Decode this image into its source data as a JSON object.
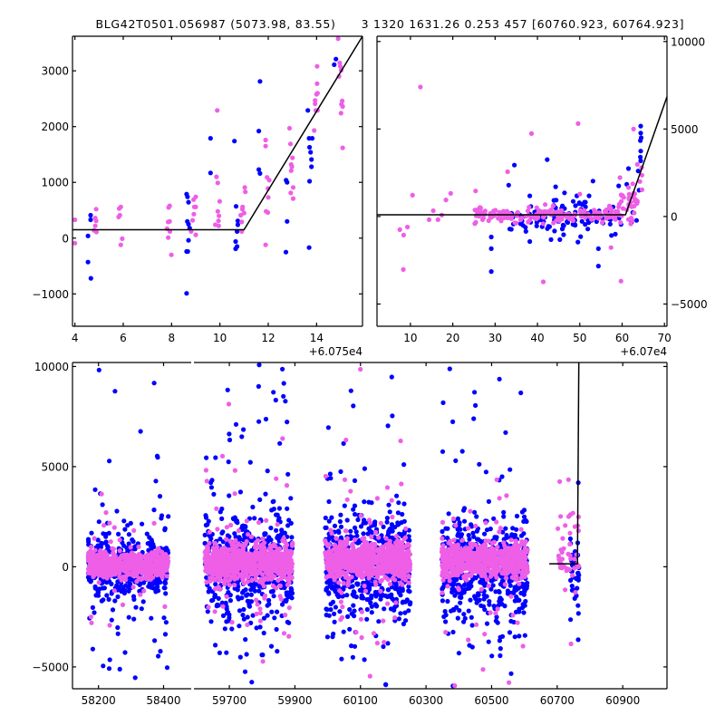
{
  "chart_data": {
    "type": "scatter",
    "title": "BLG42T0501.056987 (5073.98, 83.55)      3 1320 1631.26 0.253 457 [60760.923, 60764.923]",
    "colors": {
      "blue": "#0000ff",
      "pink": "#ee5ee6",
      "model": "#000000"
    },
    "panels": [
      {
        "id": "top-left",
        "xlim": [
          3.9,
          15.9
        ],
        "ylim": [
          -1580,
          3620
        ],
        "xticks": [
          4,
          6,
          8,
          10,
          12,
          14
        ],
        "xtick_labels": [
          "4",
          "6",
          "8",
          "10",
          "12",
          "14"
        ],
        "yticks": [
          -1000,
          0,
          1000,
          2000,
          3000
        ],
        "ytick_labels": [
          "−1000",
          "0",
          "1000",
          "2000",
          "3000"
        ],
        "x_offset_label": "+6.075e4",
        "model_line": [
          [
            3.9,
            150
          ],
          [
            11.0,
            150
          ],
          [
            15.9,
            3620
          ]
        ],
        "points": {
          "blue": [
            [
              4.65,
              410
            ],
            [
              4.65,
              330
            ],
            [
              4.54,
              40
            ],
            [
              4.54,
              -430
            ],
            [
              4.66,
              -720
            ],
            [
              8.62,
              790
            ],
            [
              8.66,
              740
            ],
            [
              8.7,
              645
            ],
            [
              8.65,
              300
            ],
            [
              8.7,
              250
            ],
            [
              8.75,
              180
            ],
            [
              8.7,
              -40
            ],
            [
              8.62,
              -240
            ],
            [
              8.67,
              -240
            ],
            [
              8.62,
              -990
            ],
            [
              9.61,
              1790
            ],
            [
              9.61,
              1170
            ],
            [
              10.6,
              1740
            ],
            [
              10.67,
              570
            ],
            [
              10.74,
              310
            ],
            [
              10.74,
              240
            ],
            [
              10.71,
              120
            ],
            [
              10.65,
              -60
            ],
            [
              10.65,
              -190
            ],
            [
              10.71,
              -150
            ],
            [
              11.66,
              2810
            ],
            [
              11.61,
              1920
            ],
            [
              11.61,
              1230
            ],
            [
              11.66,
              1160
            ],
            [
              12.74,
              1040
            ],
            [
              12.78,
              1000
            ],
            [
              12.78,
              300
            ],
            [
              12.73,
              -250
            ],
            [
              13.64,
              2290
            ],
            [
              13.69,
              1790
            ],
            [
              13.82,
              1790
            ],
            [
              13.71,
              1630
            ],
            [
              13.75,
              1540
            ],
            [
              13.79,
              1410
            ],
            [
              13.79,
              1280
            ],
            [
              13.71,
              1020
            ],
            [
              13.69,
              -170
            ],
            [
              14.8,
              3210
            ],
            [
              14.73,
              3110
            ]
          ],
          "pink": [
            [
              4.88,
              520
            ],
            [
              4.84,
              360
            ],
            [
              4.88,
              310
            ],
            [
              4.84,
              220
            ],
            [
              4.79,
              140
            ],
            [
              4.89,
              110
            ],
            [
              3.93,
              330
            ],
            [
              3.93,
              -90
            ],
            [
              5.9,
              560
            ],
            [
              5.83,
              530
            ],
            [
              5.86,
              410
            ],
            [
              5.81,
              380
            ],
            [
              5.96,
              -10
            ],
            [
              5.9,
              -120
            ],
            [
              7.92,
              580
            ],
            [
              7.88,
              550
            ],
            [
              7.92,
              300
            ],
            [
              7.86,
              290
            ],
            [
              7.81,
              170
            ],
            [
              7.93,
              120
            ],
            [
              7.86,
              10
            ],
            [
              7.99,
              -300
            ],
            [
              9.0,
              740
            ],
            [
              8.91,
              690
            ],
            [
              8.94,
              560
            ],
            [
              9.0,
              560
            ],
            [
              8.92,
              430
            ],
            [
              8.87,
              320
            ],
            [
              8.81,
              120
            ],
            [
              9.0,
              60
            ],
            [
              9.89,
              2290
            ],
            [
              9.86,
              1100
            ],
            [
              9.91,
              990
            ],
            [
              9.99,
              660
            ],
            [
              9.91,
              480
            ],
            [
              9.96,
              400
            ],
            [
              9.94,
              310
            ],
            [
              9.81,
              240
            ],
            [
              9.95,
              220
            ],
            [
              11.03,
              910
            ],
            [
              11.05,
              830
            ],
            [
              10.94,
              560
            ],
            [
              10.93,
              520
            ],
            [
              11.0,
              450
            ],
            [
              10.86,
              410
            ],
            [
              10.9,
              290
            ],
            [
              10.9,
              120
            ],
            [
              11.89,
              1760
            ],
            [
              11.89,
              1650
            ],
            [
              11.95,
              1090
            ],
            [
              12.04,
              1040
            ],
            [
              11.99,
              890
            ],
            [
              12.0,
              730
            ],
            [
              11.91,
              480
            ],
            [
              11.98,
              460
            ],
            [
              11.89,
              -120
            ],
            [
              12.88,
              1970
            ],
            [
              12.92,
              1690
            ],
            [
              13.0,
              1440
            ],
            [
              12.95,
              1320
            ],
            [
              12.98,
              1280
            ],
            [
              12.95,
              1210
            ],
            [
              13.03,
              910
            ],
            [
              12.93,
              810
            ],
            [
              13.03,
              710
            ],
            [
              14.02,
              3080
            ],
            [
              14.02,
              2770
            ],
            [
              14.04,
              2600
            ],
            [
              14.0,
              2580
            ],
            [
              13.94,
              2470
            ],
            [
              13.94,
              2410
            ],
            [
              13.97,
              2290
            ],
            [
              14.04,
              2290
            ],
            [
              13.9,
              1930
            ],
            [
              14.89,
              3600
            ],
            [
              14.96,
              3140
            ],
            [
              14.98,
              3080
            ],
            [
              15.02,
              3010
            ],
            [
              14.93,
              2900
            ],
            [
              15.06,
              2460
            ],
            [
              15.03,
              2400
            ],
            [
              15.08,
              2360
            ],
            [
              15.01,
              2240
            ],
            [
              15.08,
              1620
            ]
          ]
        }
      },
      {
        "id": "top-right",
        "xlim": [
          2.1,
          70.6
        ],
        "ylim": [
          -6270,
          10300
        ],
        "xticks": [
          10,
          20,
          30,
          40,
          50,
          60,
          70
        ],
        "xtick_labels": [
          "10",
          "20",
          "30",
          "40",
          "50",
          "60",
          "70"
        ],
        "yticks": [
          -5000,
          0,
          5000,
          10000
        ],
        "ytick_labels": [
          "−5000",
          "0",
          "5000",
          "10000"
        ],
        "y_axis_side": "right",
        "x_offset_label": "+6.07e4",
        "model_line": [
          [
            2.1,
            100
          ],
          [
            60.8,
            100
          ],
          [
            70.6,
            6840
          ]
        ],
        "points": {
          "blue": [
            [
              33.2,
              1790
            ],
            [
              29.1,
              -1170
            ],
            [
              29.1,
              -1840
            ],
            [
              29.1,
              -3140
            ],
            [
              38.2,
              1180
            ],
            [
              44.3,
              1700
            ],
            [
              46.4,
              1350
            ],
            [
              49.3,
              1180
            ],
            [
              52.2,
              1180
            ],
            [
              54.4,
              -1840
            ],
            [
              54.4,
              -2830
            ],
            [
              38.2,
              -1430
            ],
            [
              43.2,
              -1320
            ],
            [
              45.3,
              -1320
            ],
            [
              50.2,
              -1150
            ],
            [
              58.4,
              -1010
            ],
            [
              64.4,
              5170
            ],
            [
              64.4,
              4770
            ],
            [
              64.3,
              4340
            ],
            [
              64.4,
              3740
            ],
            [
              61.5,
              2740
            ],
            [
              59.2,
              1750
            ],
            [
              61.1,
              1840
            ],
            [
              64.4,
              3180
            ],
            [
              62.5,
              230
            ],
            [
              63.4,
              -220
            ],
            [
              62.2,
              -340
            ],
            [
              64.5,
              4500
            ],
            [
              64.3,
              3400
            ],
            [
              63.8,
              2600
            ],
            [
              64.0,
              1500
            ]
          ],
          "pink": [
            [
              12.35,
              7400
            ],
            [
              10.49,
              1220
            ],
            [
              19.5,
              1320
            ],
            [
              18.4,
              950
            ],
            [
              15.4,
              330
            ],
            [
              14.4,
              -180
            ],
            [
              16.5,
              -180
            ],
            [
              17.4,
              80
            ],
            [
              7.5,
              -750
            ],
            [
              8.4,
              -1060
            ],
            [
              9.3,
              -600
            ],
            [
              8.3,
              -3030
            ],
            [
              38.6,
              4740
            ],
            [
              49.6,
              5310
            ],
            [
              62.7,
              5000
            ],
            [
              63.6,
              2980
            ],
            [
              64.7,
              2360
            ],
            [
              64.7,
              1530
            ],
            [
              59.5,
              2220
            ],
            [
              61.5,
              1660
            ],
            [
              62.5,
              1870
            ],
            [
              63.2,
              970
            ],
            [
              61.5,
              -170
            ],
            [
              64.6,
              2800
            ],
            [
              64.2,
              2000
            ],
            [
              63.0,
              1300
            ],
            [
              62.0,
              800
            ]
          ]
        },
        "clusters": [
          {
            "series": "blue",
            "x_range": [
              33,
              60
            ],
            "y_center": -150,
            "y_sd": 500,
            "n": 110,
            "tail": 0.08
          },
          {
            "series": "pink",
            "x_range": [
              25,
              60
            ],
            "y_center": 100,
            "y_sd": 220,
            "n": 170,
            "tail": 0.04
          },
          {
            "series": "pink",
            "x_range": [
              59,
              64
            ],
            "y_center": 500,
            "y_sd": 400,
            "n": 30,
            "tail": 0.1
          }
        ]
      },
      {
        "id": "bottom-left",
        "xlim": [
          58120,
          58485
        ],
        "ylim": [
          -6090,
          10200
        ],
        "xticks": [
          58200,
          58400
        ],
        "xtick_labels": [
          "58200",
          "58400"
        ],
        "yticks": [
          -5000,
          0,
          5000,
          10000
        ],
        "ytick_labels": [
          "−5000",
          "0",
          "5000",
          "10000"
        ],
        "clusters": [
          {
            "series": "blue",
            "x_range": [
              58168,
              58415
            ],
            "y_center": 0,
            "y_sd": 900,
            "n": 420,
            "tail": 0.12
          },
          {
            "series": "pink",
            "x_range": [
              58168,
              58415
            ],
            "y_center": 100,
            "y_sd": 300,
            "n": 650,
            "tail": 0.06
          }
        ]
      },
      {
        "id": "bottom-right",
        "xlim": [
          59592,
          61035
        ],
        "ylim": [
          -6090,
          10200
        ],
        "xticks": [
          59700,
          59900,
          60100,
          60300,
          60500,
          60700,
          60900
        ],
        "xtick_labels": [
          "59700",
          "59900",
          "60100",
          "60300",
          "60500",
          "60700",
          "60900"
        ],
        "model_line": [
          [
            60676,
            150
          ],
          [
            60762,
            150
          ],
          [
            60766,
            10200
          ]
        ],
        "clusters": [
          {
            "series": "blue",
            "x_range": [
              59625,
              59893
            ],
            "y_center": 0,
            "y_sd": 1300,
            "n": 600,
            "tail": 0.15
          },
          {
            "series": "pink",
            "x_range": [
              59625,
              59893
            ],
            "y_center": 200,
            "y_sd": 450,
            "n": 800,
            "tail": 0.08
          },
          {
            "series": "blue",
            "x_range": [
              59992,
              60252
            ],
            "y_center": 0,
            "y_sd": 1300,
            "n": 600,
            "tail": 0.15
          },
          {
            "series": "pink",
            "x_range": [
              59992,
              60252
            ],
            "y_center": 300,
            "y_sd": 450,
            "n": 800,
            "tail": 0.08
          },
          {
            "series": "blue",
            "x_range": [
              60348,
              60610
            ],
            "y_center": 0,
            "y_sd": 1200,
            "n": 550,
            "tail": 0.15
          },
          {
            "series": "pink",
            "x_range": [
              60348,
              60610
            ],
            "y_center": 300,
            "y_sd": 400,
            "n": 750,
            "tail": 0.08
          },
          {
            "series": "blue",
            "x_range": [
              60740,
              60768
            ],
            "y_center": -600,
            "y_sd": 800,
            "n": 40,
            "tail": 0.1
          },
          {
            "series": "pink",
            "x_range": [
              60701,
              60766
            ],
            "y_center": 800,
            "y_sd": 900,
            "n": 45,
            "tail": 0.1
          }
        ]
      }
    ]
  }
}
